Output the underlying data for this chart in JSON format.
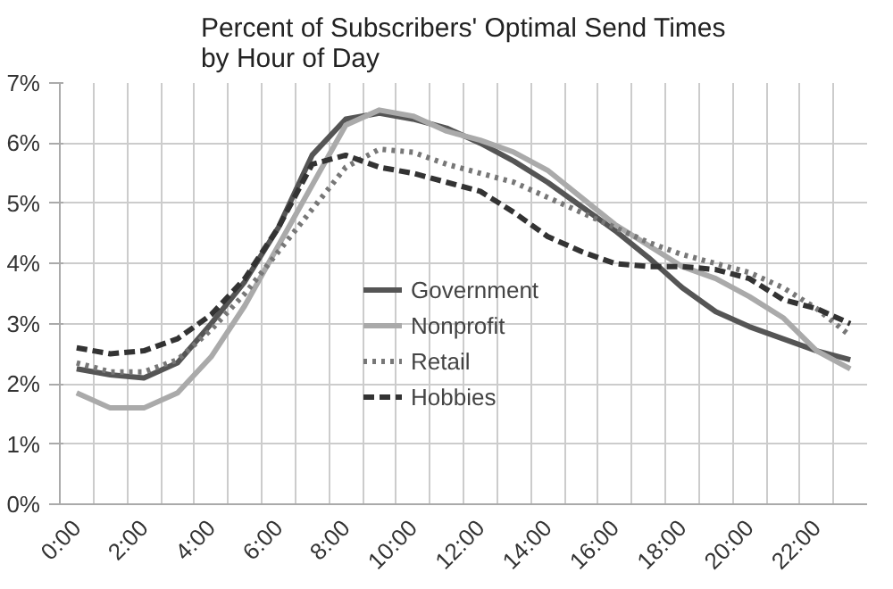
{
  "chart_data": {
    "type": "line",
    "title": "Percent of Subscribers' Optimal Send Times\nby Hour of Day",
    "categories": [
      "0:00",
      null,
      "2:00",
      null,
      "4:00",
      null,
      "6:00",
      null,
      "8:00",
      null,
      "10:00",
      null,
      "12:00",
      null,
      "14:00",
      null,
      "16:00",
      null,
      "18:00",
      null,
      "20:00",
      null,
      "22:00",
      null
    ],
    "series": [
      {
        "name": "Government",
        "color": "#555555",
        "line_style": "solid",
        "values": [
          2.25,
          2.15,
          2.1,
          2.35,
          3.0,
          3.7,
          4.6,
          5.8,
          6.4,
          6.5,
          6.4,
          6.25,
          6.0,
          5.7,
          5.35,
          4.95,
          4.55,
          4.1,
          3.6,
          3.2,
          2.95,
          2.75,
          2.55,
          2.4
        ]
      },
      {
        "name": "Nonprofit",
        "color": "#aaaaaa",
        "line_style": "solid",
        "values": [
          1.85,
          1.6,
          1.6,
          1.85,
          2.45,
          3.3,
          4.3,
          5.3,
          6.3,
          6.55,
          6.45,
          6.2,
          6.05,
          5.85,
          5.55,
          5.1,
          4.65,
          4.3,
          3.95,
          3.75,
          3.45,
          3.1,
          2.55,
          2.25
        ]
      },
      {
        "name": "Retail",
        "color": "#777777",
        "line_style": "dotted",
        "values": [
          2.35,
          2.2,
          2.2,
          2.4,
          2.9,
          3.5,
          4.2,
          4.9,
          5.6,
          5.9,
          5.85,
          5.65,
          5.5,
          5.35,
          5.1,
          4.85,
          4.6,
          4.35,
          4.15,
          4.0,
          3.85,
          3.6,
          3.25,
          2.8
        ]
      },
      {
        "name": "Hobbies",
        "color": "#333333",
        "line_style": "dashed",
        "values": [
          2.6,
          2.5,
          2.55,
          2.75,
          3.15,
          3.75,
          4.6,
          5.65,
          5.8,
          5.6,
          5.5,
          5.35,
          5.2,
          4.85,
          4.45,
          4.2,
          4.0,
          3.95,
          3.95,
          3.9,
          3.75,
          3.4,
          3.25,
          3.0
        ]
      }
    ],
    "ylim": [
      0,
      7
    ],
    "yticks": [
      {
        "value": 0,
        "label": "0%"
      },
      {
        "value": 1,
        "label": "1%"
      },
      {
        "value": 2,
        "label": "2%"
      },
      {
        "value": 3,
        "label": "3%"
      },
      {
        "value": 4,
        "label": "4%"
      },
      {
        "value": 5,
        "label": "5%"
      },
      {
        "value": 6,
        "label": "6%"
      },
      {
        "value": 7,
        "label": "7%"
      }
    ],
    "grid": true,
    "legend": "center",
    "marker": "none"
  }
}
